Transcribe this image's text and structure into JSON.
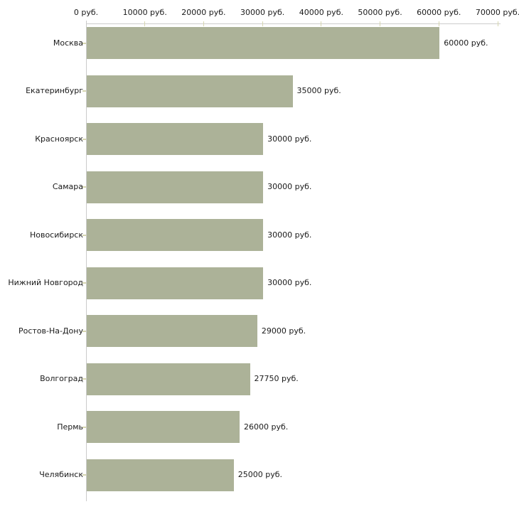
{
  "chart_data": {
    "type": "bar",
    "orientation": "horizontal",
    "title": "",
    "xlabel": "",
    "ylabel": "",
    "categories": [
      "Москва",
      "Екатеринбург",
      "Красноярск",
      "Самара",
      "Новосибирск",
      "Нижний Новгород",
      "Ростов-На-Дону",
      "Волгоград",
      "Пермь",
      "Челябинск"
    ],
    "values": [
      60000,
      35000,
      30000,
      30000,
      30000,
      30000,
      29000,
      27750,
      26000,
      25000
    ],
    "value_labels": [
      "60000 руб.",
      "35000 руб.",
      "30000 руб.",
      "30000 руб.",
      "30000 руб.",
      "30000 руб.",
      "29000 руб.",
      "27750 руб.",
      "26000 руб.",
      "25000 руб."
    ],
    "x_tick_labels": [
      "0 руб.",
      "10000 руб.",
      "20000 руб.",
      "30000 руб.",
      "40000 руб.",
      "50000 руб.",
      "60000 руб.",
      "70000 руб."
    ],
    "xlim": [
      0,
      70000
    ],
    "x_tick_step": 10000,
    "grid": false,
    "legend": false,
    "colors": {
      "bar": "#acb298",
      "axis": "#cbcbcb",
      "tick": "#d6d6b0",
      "text": "#1a1a1a",
      "background": "#ffffff"
    }
  }
}
